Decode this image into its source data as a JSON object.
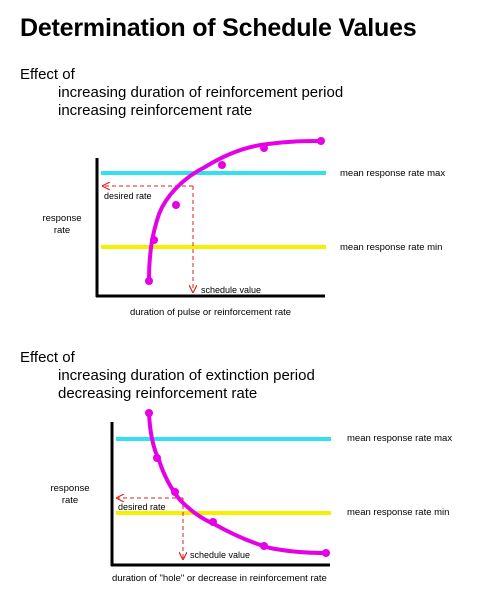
{
  "title": "Determination of Schedule Values",
  "colors": {
    "curve": "#e600e6",
    "max_line": "#33e0f0",
    "min_line": "#f5f000",
    "guide": "#e62020",
    "axis": "#000000"
  },
  "panel1": {
    "effect_label": "Effect of",
    "line1": "increasing duration of reinforcement period",
    "line2": "increasing reinforcement rate",
    "y_label_line1": "response",
    "y_label_line2": "rate",
    "x_label": "duration of pulse or reinforcement rate",
    "max_label": "mean response rate max",
    "min_label": "mean response rate min",
    "desired_label": "desired rate",
    "schedule_label": "schedule value"
  },
  "panel2": {
    "effect_label": "Effect of",
    "line1": "increasing duration of extinction period",
    "line2": "decreasing reinforcement rate",
    "y_label_line1": "response",
    "y_label_line2": "rate",
    "x_label": "duration of \"hole\" or decrease in reinforcement rate",
    "max_label": "mean response rate max",
    "min_label": "mean response rate min",
    "desired_label": "desired rate",
    "schedule_label": "schedule value"
  }
}
